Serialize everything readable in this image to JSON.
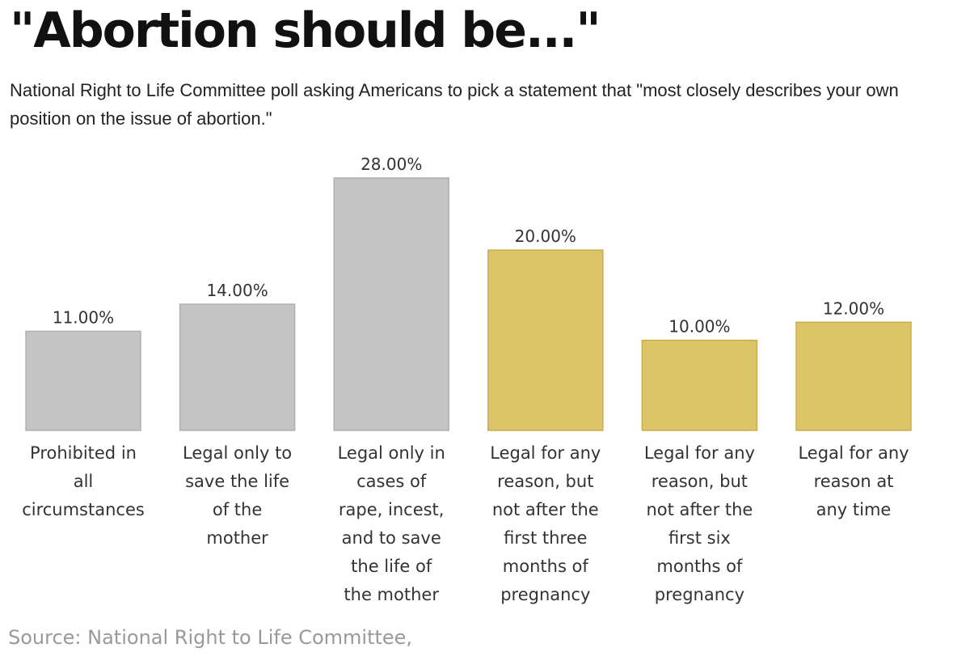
{
  "title": "\"Abortion should be...\"",
  "subtitle": "National Right to Life Committee poll asking Americans to pick a statement that \"most closely describes your own position on the issue of abortion.\"",
  "source": "Source: National Right to Life Committee,",
  "colors": {
    "gray": "#c4c4c4",
    "gray_stroke": "#b0b0b0",
    "gold": "#dcc468",
    "gold_stroke": "#c9ae4a"
  },
  "chart_data": {
    "type": "bar",
    "categories": [
      [
        "Prohibited in",
        "all",
        "circumstances"
      ],
      [
        "Legal only to",
        "save the life",
        "of the",
        "mother"
      ],
      [
        "Legal only in",
        "cases of",
        "rape, incest,",
        "and to save",
        "the life of",
        "the mother"
      ],
      [
        "Legal for any",
        "reason, but",
        "not after the",
        "first three",
        "months of",
        "pregnancy"
      ],
      [
        "Legal for any",
        "reason, but",
        "not after the",
        "first six",
        "months of",
        "pregnancy"
      ],
      [
        "Legal for any",
        "reason at",
        "any time"
      ]
    ],
    "values": [
      11,
      14,
      28,
      20,
      10,
      12
    ],
    "value_labels": [
      "11.00%",
      "14.00%",
      "28.00%",
      "20.00%",
      "10.00%",
      "12.00%"
    ],
    "bar_colors": [
      "gray",
      "gray",
      "gray",
      "gold",
      "gold",
      "gold"
    ],
    "ylim": [
      0,
      28
    ],
    "grid": false,
    "legend": "none"
  }
}
